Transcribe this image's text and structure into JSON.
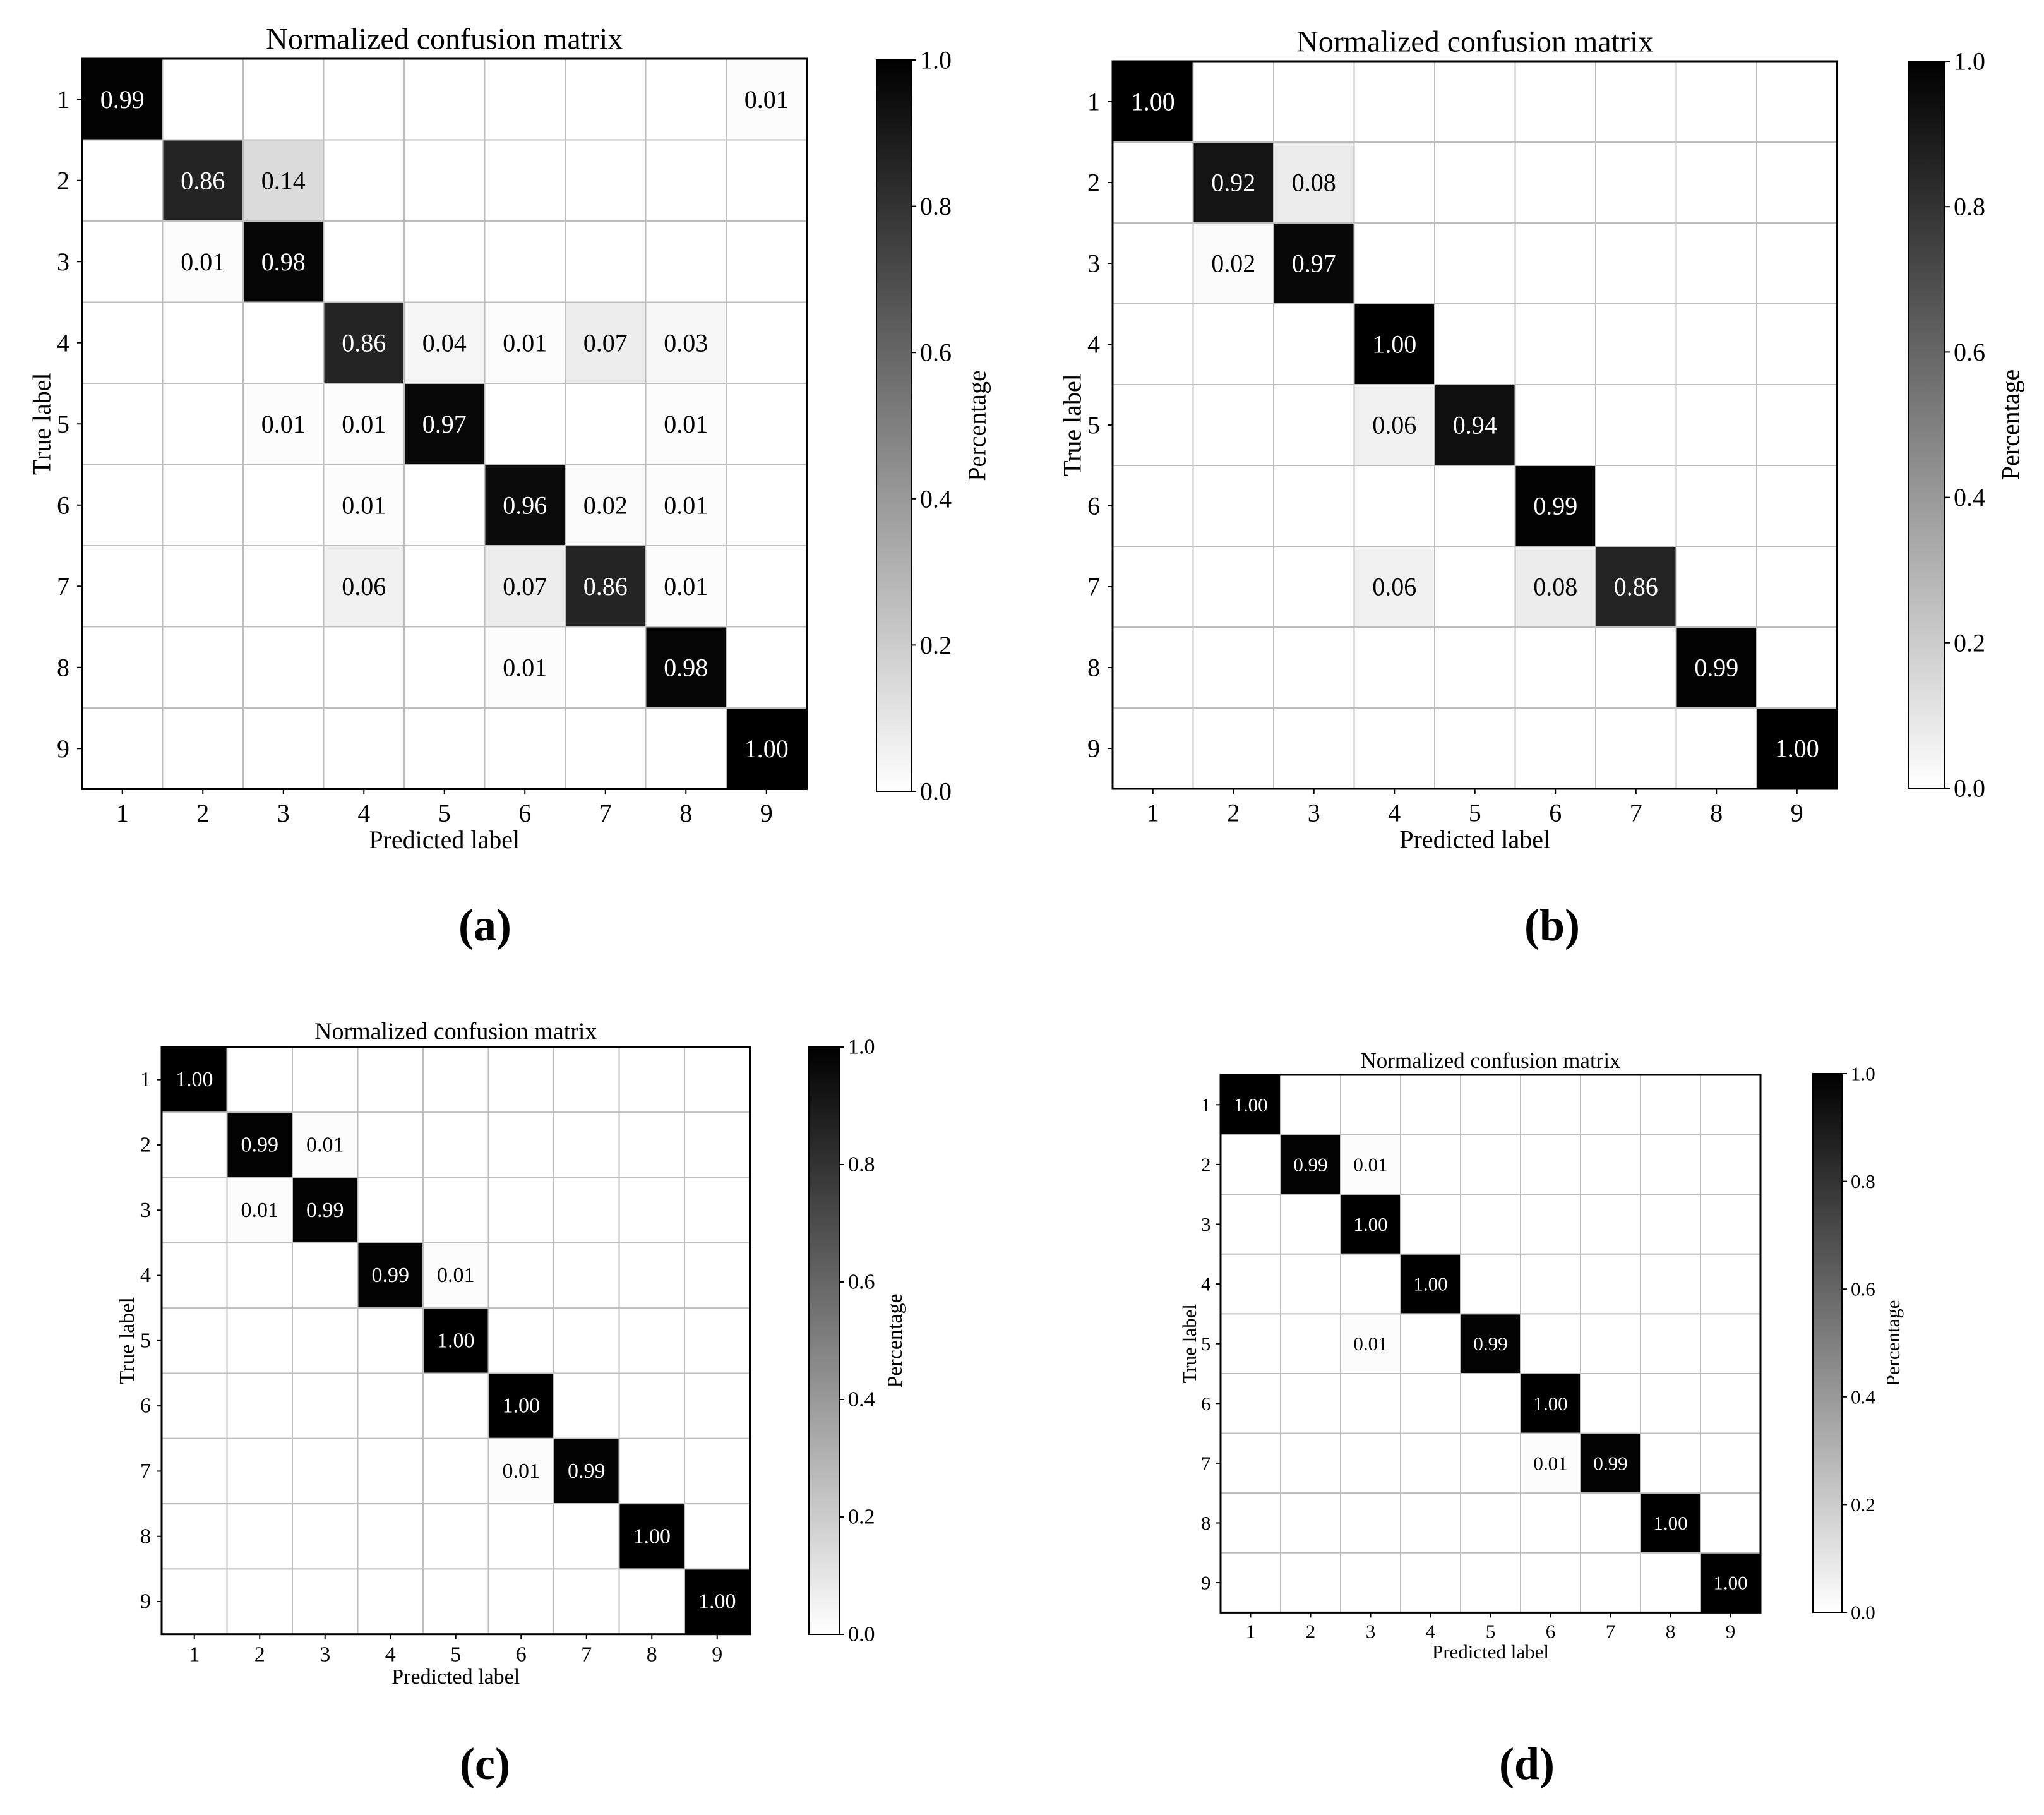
{
  "figure": {
    "panel_labels": [
      "(a)",
      "(b)",
      "(c)",
      "(d)"
    ]
  },
  "chart_data": [
    {
      "type": "heatmap",
      "panel": "(a)",
      "title": "Normalized confusion matrix",
      "xlabel": "Predicted label",
      "ylabel": "True label",
      "colorbar_label": "Percentage",
      "colorbar_ticks": [
        "0.0",
        "0.2",
        "0.4",
        "0.6",
        "0.8",
        "1.0"
      ],
      "x_categories": [
        "1",
        "2",
        "3",
        "4",
        "5",
        "6",
        "7",
        "8",
        "9"
      ],
      "y_categories": [
        "1",
        "2",
        "3",
        "4",
        "5",
        "6",
        "7",
        "8",
        "9"
      ],
      "vmin": 0,
      "vmax": 1,
      "colormap": "Greys",
      "grid": true,
      "matrix": [
        [
          0.99,
          null,
          null,
          null,
          null,
          null,
          null,
          null,
          0.01
        ],
        [
          null,
          0.86,
          0.14,
          null,
          null,
          null,
          null,
          null,
          null
        ],
        [
          null,
          0.01,
          0.98,
          null,
          null,
          null,
          null,
          null,
          null
        ],
        [
          null,
          null,
          null,
          0.86,
          0.04,
          0.01,
          0.07,
          0.03,
          null
        ],
        [
          null,
          null,
          0.01,
          0.01,
          0.97,
          null,
          null,
          0.01,
          null
        ],
        [
          null,
          null,
          null,
          0.01,
          null,
          0.96,
          0.02,
          0.01,
          null
        ],
        [
          null,
          null,
          null,
          0.06,
          null,
          0.07,
          0.86,
          0.01,
          null
        ],
        [
          null,
          null,
          null,
          null,
          null,
          0.01,
          null,
          0.98,
          null
        ],
        [
          null,
          null,
          null,
          null,
          null,
          null,
          null,
          null,
          1.0
        ]
      ]
    },
    {
      "type": "heatmap",
      "panel": "(b)",
      "title": "Normalized confusion matrix",
      "xlabel": "Predicted label",
      "ylabel": "True label",
      "colorbar_label": "Percentage",
      "colorbar_ticks": [
        "0.0",
        "0.2",
        "0.4",
        "0.6",
        "0.8",
        "1.0"
      ],
      "x_categories": [
        "1",
        "2",
        "3",
        "4",
        "5",
        "6",
        "7",
        "8",
        "9"
      ],
      "y_categories": [
        "1",
        "2",
        "3",
        "4",
        "5",
        "6",
        "7",
        "8",
        "9"
      ],
      "vmin": 0,
      "vmax": 1,
      "colormap": "Greys",
      "grid": true,
      "matrix": [
        [
          1.0,
          null,
          null,
          null,
          null,
          null,
          null,
          null,
          null
        ],
        [
          null,
          0.92,
          0.08,
          null,
          null,
          null,
          null,
          null,
          null
        ],
        [
          null,
          0.02,
          0.97,
          null,
          null,
          null,
          null,
          null,
          null
        ],
        [
          null,
          null,
          null,
          1.0,
          null,
          null,
          null,
          null,
          null
        ],
        [
          null,
          null,
          null,
          0.06,
          0.94,
          null,
          null,
          null,
          null
        ],
        [
          null,
          null,
          null,
          null,
          null,
          0.99,
          null,
          null,
          null
        ],
        [
          null,
          null,
          null,
          0.06,
          null,
          0.08,
          0.86,
          null,
          null
        ],
        [
          null,
          null,
          null,
          null,
          null,
          null,
          null,
          0.99,
          null
        ],
        [
          null,
          null,
          null,
          null,
          null,
          null,
          null,
          null,
          1.0
        ]
      ]
    },
    {
      "type": "heatmap",
      "panel": "(c)",
      "title": "Normalized confusion matrix",
      "xlabel": "Predicted label",
      "ylabel": "True label",
      "colorbar_label": "Percentage",
      "colorbar_ticks": [
        "0.0",
        "0.2",
        "0.4",
        "0.6",
        "0.8",
        "1.0"
      ],
      "x_categories": [
        "1",
        "2",
        "3",
        "4",
        "5",
        "6",
        "7",
        "8",
        "9"
      ],
      "y_categories": [
        "1",
        "2",
        "3",
        "4",
        "5",
        "6",
        "7",
        "8",
        "9"
      ],
      "vmin": 0,
      "vmax": 1,
      "colormap": "Greys",
      "grid": true,
      "matrix": [
        [
          1.0,
          null,
          null,
          null,
          null,
          null,
          null,
          null,
          null
        ],
        [
          null,
          0.99,
          0.01,
          null,
          null,
          null,
          null,
          null,
          null
        ],
        [
          null,
          0.01,
          0.99,
          null,
          null,
          null,
          null,
          null,
          null
        ],
        [
          null,
          null,
          null,
          0.99,
          0.01,
          null,
          null,
          null,
          null
        ],
        [
          null,
          null,
          null,
          null,
          1.0,
          null,
          null,
          null,
          null
        ],
        [
          null,
          null,
          null,
          null,
          null,
          1.0,
          null,
          null,
          null
        ],
        [
          null,
          null,
          null,
          null,
          null,
          0.01,
          0.99,
          null,
          null
        ],
        [
          null,
          null,
          null,
          null,
          null,
          null,
          null,
          1.0,
          null
        ],
        [
          null,
          null,
          null,
          null,
          null,
          null,
          null,
          null,
          1.0
        ]
      ]
    },
    {
      "type": "heatmap",
      "panel": "(d)",
      "title": "Normalized confusion matrix",
      "xlabel": "Predicted label",
      "ylabel": "True label",
      "colorbar_label": "Percentage",
      "colorbar_ticks": [
        "0.0",
        "0.2",
        "0.4",
        "0.6",
        "0.8",
        "1.0"
      ],
      "x_categories": [
        "1",
        "2",
        "3",
        "4",
        "5",
        "6",
        "7",
        "8",
        "9"
      ],
      "y_categories": [
        "1",
        "2",
        "3",
        "4",
        "5",
        "6",
        "7",
        "8",
        "9"
      ],
      "vmin": 0,
      "vmax": 1,
      "colormap": "Greys",
      "grid": true,
      "matrix": [
        [
          1.0,
          null,
          null,
          null,
          null,
          null,
          null,
          null,
          null
        ],
        [
          null,
          0.99,
          0.01,
          null,
          null,
          null,
          null,
          null,
          null
        ],
        [
          null,
          null,
          1.0,
          null,
          null,
          null,
          null,
          null,
          null
        ],
        [
          null,
          null,
          null,
          1.0,
          null,
          null,
          null,
          null,
          null
        ],
        [
          null,
          null,
          0.01,
          null,
          0.99,
          null,
          null,
          null,
          null
        ],
        [
          null,
          null,
          null,
          null,
          null,
          1.0,
          null,
          null,
          null
        ],
        [
          null,
          null,
          null,
          null,
          null,
          0.01,
          0.99,
          null,
          null
        ],
        [
          null,
          null,
          null,
          null,
          null,
          null,
          null,
          1.0,
          null
        ],
        [
          null,
          null,
          null,
          null,
          null,
          null,
          null,
          null,
          1.0
        ]
      ]
    }
  ]
}
